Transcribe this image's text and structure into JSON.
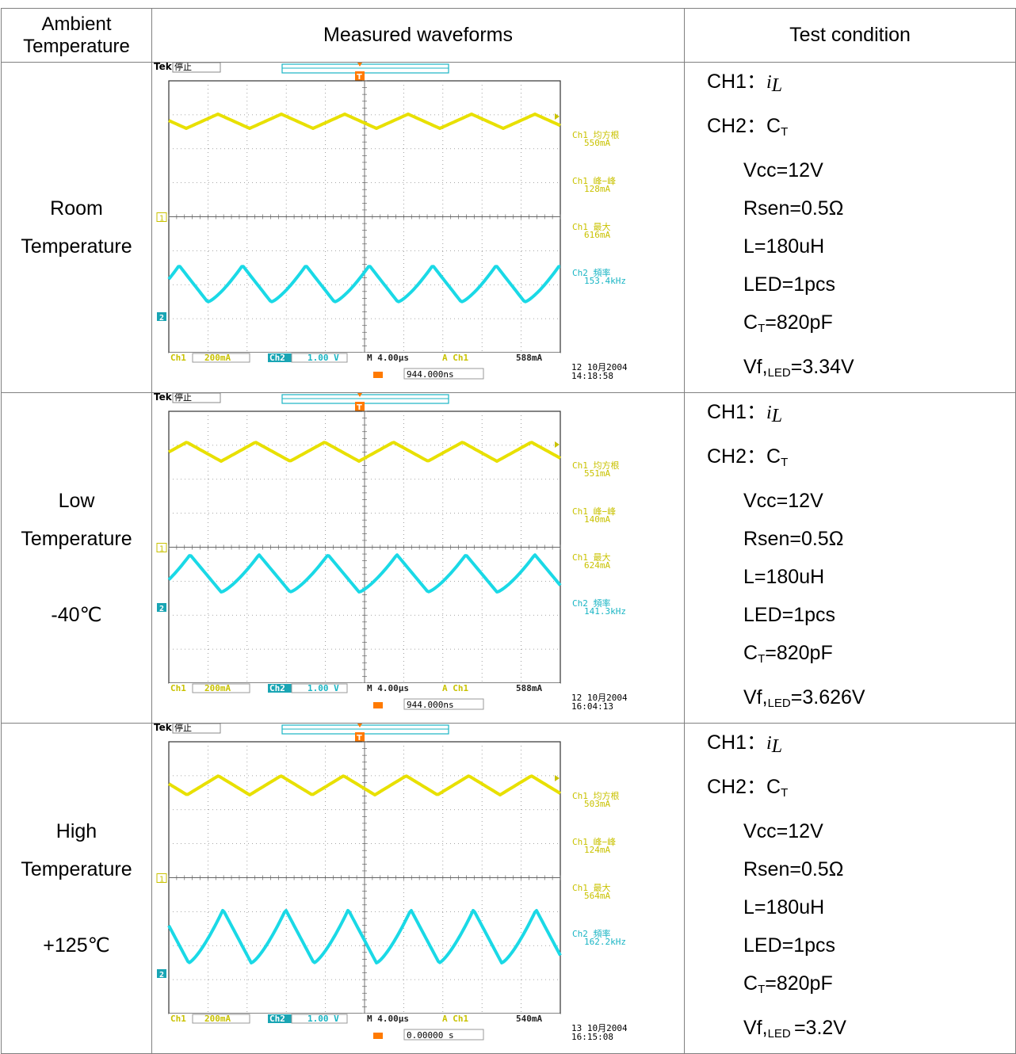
{
  "header": {
    "ambient_label_1": "Ambient",
    "ambient_label_2": "Temperature",
    "measured_label": "Measured waveforms",
    "test_label": "Test condition"
  },
  "colors": {
    "ch1": "#e8e000",
    "ch2": "#1ad9e6",
    "trigger": "#ff7a00",
    "grid": "#9a9a9a"
  },
  "rows": [
    {
      "ambient": [
        "Room",
        "Temperature",
        ""
      ],
      "scope": {
        "brand": "Tek",
        "state": "停止",
        "measurements": [
          {
            "label": "Ch1 均方根",
            "value": "550mA",
            "ch": 1
          },
          {
            "label": "Ch1 峰−峰",
            "value": "128mA",
            "ch": 1
          },
          {
            "label": "Ch1 最大",
            "value": "616mA",
            "ch": 1
          },
          {
            "label": "Ch2 頻率",
            "value": "153.4kHz",
            "ch": 2
          }
        ],
        "status": {
          "ch1": "Ch1",
          "ch1_scale": "200mA",
          "ch2": "Ch2",
          "ch2_scale": "1.00 V",
          "timebase": "M 4.00µs",
          "trig_src": "A  Ch1",
          "trig_level": "588mA"
        },
        "trigger_pos": "944.000ns",
        "date": "12 10月2004",
        "time": "14:18:58"
      },
      "conditions": {
        "ch1": "CH1：",
        "ch1_var": "i",
        "ch1_sub": "L",
        "ch2": "CH2：C",
        "ch2_sub": "T",
        "vcc": "Vcc=12V",
        "rsen": "Rsen=0.5Ω",
        "l": "L=180uH",
        "led": "LED=1pcs",
        "ct_pre": "C",
        "ct_sub": "T",
        "ct_val": "=820pF",
        "vf_pre": "Vf,",
        "vf_sub": "LED",
        "vf_val": "=3.34V"
      }
    },
    {
      "ambient": [
        "Low",
        "Temperature",
        "-40℃"
      ],
      "scope": {
        "brand": "Tek",
        "state": "停止",
        "measurements": [
          {
            "label": "Ch1 均方根",
            "value": "551mA",
            "ch": 1
          },
          {
            "label": "Ch1 峰−峰",
            "value": "140mA",
            "ch": 1
          },
          {
            "label": "Ch1 最大",
            "value": "624mA",
            "ch": 1
          },
          {
            "label": "Ch2 頻率",
            "value": "141.3kHz",
            "ch": 2
          }
        ],
        "status": {
          "ch1": "Ch1",
          "ch1_scale": "200mA",
          "ch2": "Ch2",
          "ch2_scale": "1.00 V",
          "timebase": "M 4.00µs",
          "trig_src": "A  Ch1",
          "trig_level": "588mA"
        },
        "trigger_pos": "944.000ns",
        "date": "12 10月2004",
        "time": "16:04:13"
      },
      "conditions": {
        "ch1": "CH1：",
        "ch1_var": "i",
        "ch1_sub": "L",
        "ch2": "CH2：C",
        "ch2_sub": "T",
        "vcc": "Vcc=12V",
        "rsen": "Rsen=0.5Ω",
        "l": "L=180uH",
        "led": "LED=1pcs",
        "ct_pre": "C",
        "ct_sub": "T",
        "ct_val": "=820pF",
        "vf_pre": "Vf,",
        "vf_sub": "LED",
        "vf_val": "=3.626V"
      }
    },
    {
      "ambient": [
        "High",
        "Temperature",
        "+125℃"
      ],
      "scope": {
        "brand": "Tek",
        "state": "停止",
        "measurements": [
          {
            "label": "Ch1 均方根",
            "value": "503mA",
            "ch": 1
          },
          {
            "label": "Ch1 峰−峰",
            "value": "124mA",
            "ch": 1
          },
          {
            "label": "Ch1 最大",
            "value": "564mA",
            "ch": 1
          },
          {
            "label": "Ch2 頻率",
            "value": "162.2kHz",
            "ch": 2
          }
        ],
        "status": {
          "ch1": "Ch1",
          "ch1_scale": "200mA",
          "ch2": "Ch2",
          "ch2_scale": "1.00 V",
          "timebase": "M 4.00µs",
          "trig_src": "A  Ch1",
          "trig_level": "540mA"
        },
        "trigger_pos": "0.00000 s",
        "date": "13 10月2004",
        "time": "16:15:08"
      },
      "conditions": {
        "ch1": "CH1：",
        "ch1_var": "i",
        "ch1_sub": "L",
        "ch2": "CH2：C",
        "ch2_sub": "T",
        "vcc": "Vcc=12V",
        "rsen": "Rsen=0.5Ω",
        "l": "L=180uH",
        "led": "LED=1pcs",
        "ct_pre": "C",
        "ct_sub": "T",
        "ct_val": "=820pF",
        "vf_pre": "Vf,",
        "vf_sub": "LED ",
        "vf_val": "=3.2V"
      }
    }
  ]
}
